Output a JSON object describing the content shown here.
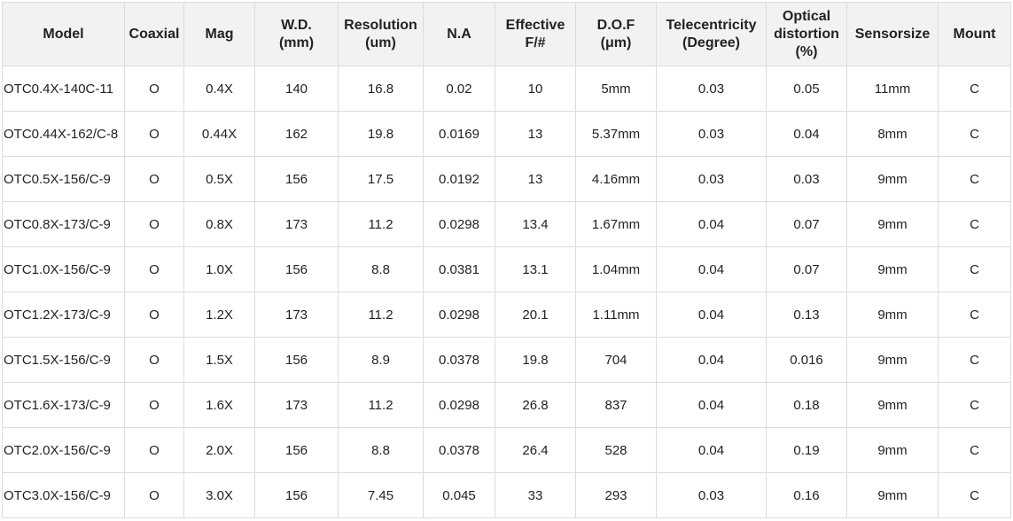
{
  "table": {
    "headers": [
      [
        "Model"
      ],
      [
        "Coaxial"
      ],
      [
        "Mag"
      ],
      [
        "W.D.",
        "(mm)"
      ],
      [
        "Resolution",
        "(um)"
      ],
      [
        "N.A"
      ],
      [
        "Effective",
        "F/#"
      ],
      [
        "D.O.F",
        "(μm)"
      ],
      [
        "Telecentricity",
        "(Degree)"
      ],
      [
        "Optical",
        "distortion",
        "(%)"
      ],
      [
        "Sensorsize"
      ],
      [
        "Mount"
      ]
    ],
    "rows": [
      [
        "OTC0.4X-140C-11",
        "O",
        "0.4X",
        "140",
        "16.8",
        "0.02",
        "10",
        "5mm",
        "0.03",
        "0.05",
        "11mm",
        "C"
      ],
      [
        "OTC0.44X-162/C-8",
        "O",
        "0.44X",
        "162",
        "19.8",
        "0.0169",
        "13",
        "5.37mm",
        "0.03",
        "0.04",
        "8mm",
        "C"
      ],
      [
        "OTC0.5X-156/C-9",
        "O",
        "0.5X",
        "156",
        "17.5",
        "0.0192",
        "13",
        "4.16mm",
        "0.03",
        "0.03",
        "9mm",
        "C"
      ],
      [
        "OTC0.8X-173/C-9",
        "O",
        "0.8X",
        "173",
        "11.2",
        "0.0298",
        "13.4",
        "1.67mm",
        "0.04",
        "0.07",
        "9mm",
        "C"
      ],
      [
        "OTC1.0X-156/C-9",
        "O",
        "1.0X",
        "156",
        "8.8",
        "0.0381",
        "13.1",
        "1.04mm",
        "0.04",
        "0.07",
        "9mm",
        "C"
      ],
      [
        "OTC1.2X-173/C-9",
        "O",
        "1.2X",
        "173",
        "11.2",
        "0.0298",
        "20.1",
        "1.11mm",
        "0.04",
        "0.13",
        "9mm",
        "C"
      ],
      [
        "OTC1.5X-156/C-9",
        "O",
        "1.5X",
        "156",
        "8.9",
        "0.0378",
        "19.8",
        "704",
        "0.04",
        "0.016",
        "9mm",
        "C"
      ],
      [
        "OTC1.6X-173/C-9",
        "O",
        "1.6X",
        "173",
        "11.2",
        "0.0298",
        "26.8",
        "837",
        "0.04",
        "0.18",
        "9mm",
        "C"
      ],
      [
        "OTC2.0X-156/C-9",
        "O",
        "2.0X",
        "156",
        "8.8",
        "0.0378",
        "26.4",
        "528",
        "0.04",
        "0.19",
        "9mm",
        "C"
      ],
      [
        "OTC3.0X-156/C-9",
        "O",
        "3.0X",
        "156",
        "7.45",
        "0.045",
        "33",
        "293",
        "0.03",
        "0.16",
        "9mm",
        "C"
      ]
    ]
  }
}
